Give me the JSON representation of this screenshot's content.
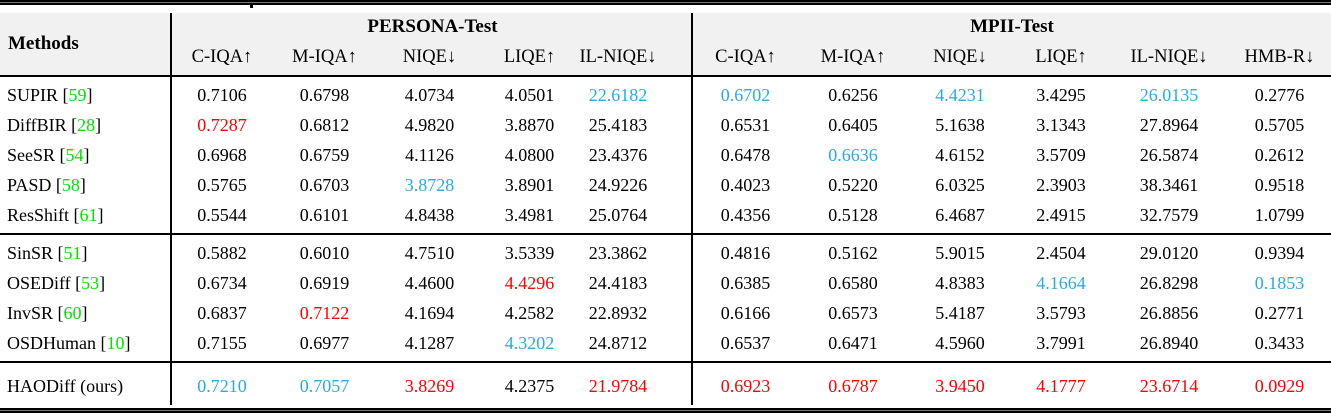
{
  "colors": {
    "black": "#000000",
    "best": "#fe0000",
    "second": "#29abe2",
    "cite_green": "#00e400",
    "header_bg": "#f1f1f1",
    "rule": "#000000"
  },
  "header": {
    "methods_label": "Methods",
    "groups": [
      {
        "label": "PERSONA-Test",
        "metrics": [
          "C-IQA↑",
          "M-IQA↑",
          "NIQE↓",
          "LIQE↑",
          "IL-NIQE↓"
        ]
      },
      {
        "label": "MPII-Test",
        "metrics": [
          "C-IQA↑",
          "M-IQA↑",
          "NIQE↓",
          "LIQE↑",
          "IL-NIQE↓",
          "HMB-R↓"
        ]
      }
    ]
  },
  "table": {
    "rows": [
      {
        "method": "SUPIR",
        "cite": "59",
        "values": [
          "0.7106",
          "0.6798",
          "4.0734",
          "4.0501",
          "22.6182",
          "0.6702",
          "0.6256",
          "4.4231",
          "3.4295",
          "26.0135",
          "0.2776"
        ],
        "colors": [
          "k",
          "k",
          "k",
          "k",
          "c",
          "c",
          "k",
          "c",
          "k",
          "c",
          "k"
        ]
      },
      {
        "method": "DiffBIR",
        "cite": "28",
        "values": [
          "0.7287",
          "0.6812",
          "4.9820",
          "3.8870",
          "25.4183",
          "0.6531",
          "0.6405",
          "5.1638",
          "3.1343",
          "27.8964",
          "0.5705"
        ],
        "colors": [
          "r",
          "k",
          "k",
          "k",
          "k",
          "k",
          "k",
          "k",
          "k",
          "k",
          "k"
        ]
      },
      {
        "method": "SeeSR",
        "cite": "54",
        "values": [
          "0.6968",
          "0.6759",
          "4.1126",
          "4.0800",
          "23.4376",
          "0.6478",
          "0.6636",
          "4.6152",
          "3.5709",
          "26.5874",
          "0.2612"
        ],
        "colors": [
          "k",
          "k",
          "k",
          "k",
          "k",
          "k",
          "c",
          "k",
          "k",
          "k",
          "k"
        ]
      },
      {
        "method": "PASD",
        "cite": "58",
        "values": [
          "0.5765",
          "0.6703",
          "3.8728",
          "3.8901",
          "24.9226",
          "0.4023",
          "0.5220",
          "6.0325",
          "2.3903",
          "38.3461",
          "0.9518"
        ],
        "colors": [
          "k",
          "k",
          "c",
          "k",
          "k",
          "k",
          "k",
          "k",
          "k",
          "k",
          "k"
        ]
      },
      {
        "method": "ResShift",
        "cite": "61",
        "values": [
          "0.5544",
          "0.6101",
          "4.8438",
          "3.4981",
          "25.0764",
          "0.4356",
          "0.5128",
          "6.4687",
          "2.4915",
          "32.7579",
          "1.0799"
        ],
        "colors": [
          "k",
          "k",
          "k",
          "k",
          "k",
          "k",
          "k",
          "k",
          "k",
          "k",
          "k"
        ]
      },
      {
        "method": "SinSR",
        "cite": "51",
        "values": [
          "0.5882",
          "0.6010",
          "4.7510",
          "3.5339",
          "23.3862",
          "0.4816",
          "0.5162",
          "5.9015",
          "2.4504",
          "29.0120",
          "0.9394"
        ],
        "colors": [
          "k",
          "k",
          "k",
          "k",
          "k",
          "k",
          "k",
          "k",
          "k",
          "k",
          "k"
        ]
      },
      {
        "method": "OSEDiff",
        "cite": "53",
        "values": [
          "0.6734",
          "0.6919",
          "4.4600",
          "4.4296",
          "24.4183",
          "0.6385",
          "0.6580",
          "4.8383",
          "4.1664",
          "26.8298",
          "0.1853"
        ],
        "colors": [
          "k",
          "k",
          "k",
          "r",
          "k",
          "k",
          "k",
          "k",
          "c",
          "k",
          "c"
        ]
      },
      {
        "method": "InvSR",
        "cite": "60",
        "values": [
          "0.6837",
          "0.7122",
          "4.1694",
          "4.2582",
          "22.8932",
          "0.6166",
          "0.6573",
          "5.4187",
          "3.5793",
          "26.8856",
          "0.2771"
        ],
        "colors": [
          "k",
          "r",
          "k",
          "k",
          "k",
          "k",
          "k",
          "k",
          "k",
          "k",
          "k"
        ]
      },
      {
        "method": "OSDHuman",
        "cite": "10",
        "values": [
          "0.7155",
          "0.6977",
          "4.1287",
          "4.3202",
          "24.8712",
          "0.6537",
          "0.6471",
          "4.5960",
          "3.7991",
          "26.8940",
          "0.3433"
        ],
        "colors": [
          "k",
          "k",
          "k",
          "c",
          "k",
          "k",
          "k",
          "k",
          "k",
          "k",
          "k"
        ]
      },
      {
        "method": "HAODiff (ours)",
        "cite": null,
        "ours": true,
        "values": [
          "0.7210",
          "0.7057",
          "3.8269",
          "4.2375",
          "21.9784",
          "0.6923",
          "0.6787",
          "3.9450",
          "4.1777",
          "23.6714",
          "0.0929"
        ],
        "colors": [
          "c",
          "c",
          "r",
          "k",
          "r",
          "r",
          "r",
          "r",
          "r",
          "r",
          "r"
        ]
      }
    ],
    "block_breaks_after": [
      4,
      8
    ]
  }
}
